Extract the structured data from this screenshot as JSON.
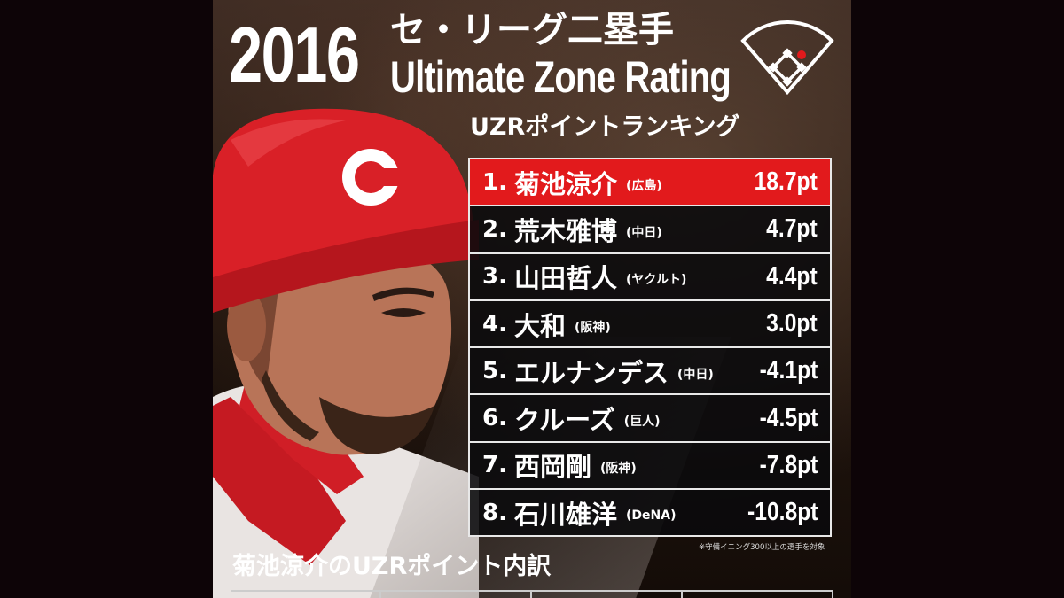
{
  "header": {
    "year": "2016",
    "title_jp": "セ・リーグ二塁手",
    "title_en": "Ultimate Zone Rating",
    "subheading": "UZRポイントランキング"
  },
  "ranking": [
    {
      "rank": "1.",
      "name": "菊池涼介",
      "team": "(広島)",
      "points": "18.7pt",
      "highlight": true
    },
    {
      "rank": "2.",
      "name": "荒木雅博",
      "team": "(中日)",
      "points": "4.7pt",
      "highlight": false
    },
    {
      "rank": "3.",
      "name": "山田哲人",
      "team": "(ヤクルト)",
      "points": "4.4pt",
      "highlight": false
    },
    {
      "rank": "4.",
      "name": "大和",
      "team": "(阪神)",
      "points": "3.0pt",
      "highlight": false
    },
    {
      "rank": "5.",
      "name": "エルナンデス",
      "team": "(中日)",
      "points": "-4.1pt",
      "highlight": false
    },
    {
      "rank": "6.",
      "name": "クルーズ",
      "team": "(巨人)",
      "points": "-4.5pt",
      "highlight": false
    },
    {
      "rank": "7.",
      "name": "西岡剛",
      "team": "(阪神)",
      "points": "-7.8pt",
      "highlight": false
    },
    {
      "rank": "8.",
      "name": "石川雄洋",
      "team": "(DeNA)",
      "points": "-10.8pt",
      "highlight": false
    }
  ],
  "footnote": "※守備イニング300以上の選手を対象",
  "breakdown_title": "菊池涼介のUZRポイント内訳",
  "colors": {
    "highlight_red": "#e21a1c",
    "cap_red": "#d92027",
    "row_dark": "#0a0a0c"
  },
  "icons": {
    "field": "baseball-diamond-icon",
    "cap_logo": "carp-c-logo"
  }
}
